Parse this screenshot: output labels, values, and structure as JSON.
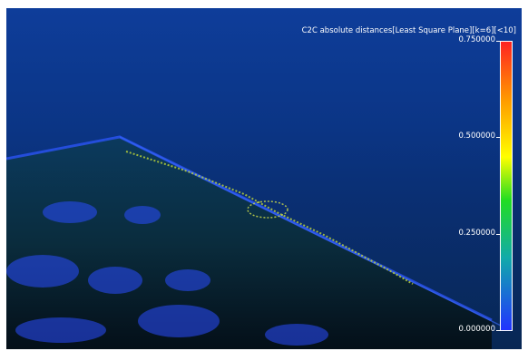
{
  "viewer": {
    "scalar_field_title": "C2C absolute distances[Least Square Plane][k=6][<10]",
    "scale": {
      "ticks": [
        {
          "label": "0.750000",
          "value": 0.75
        },
        {
          "label": "0.500000",
          "value": 0.5
        },
        {
          "label": "0.250000",
          "value": 0.25
        },
        {
          "label": "0.000000",
          "value": 0.0
        }
      ],
      "min": 0.0,
      "max": 0.75,
      "colors": [
        "#ff2222",
        "#ff9900",
        "#ffff00",
        "#22dd22",
        "#11aaaa",
        "#2233ff"
      ]
    },
    "colors": {
      "background_top": "#0e3d9a",
      "background_bottom": "#082754",
      "edge": "#2e56ff",
      "highlight": "#b7d03a"
    },
    "icons": [
      "point-cloud-icon",
      "color-scale-icon"
    ]
  }
}
